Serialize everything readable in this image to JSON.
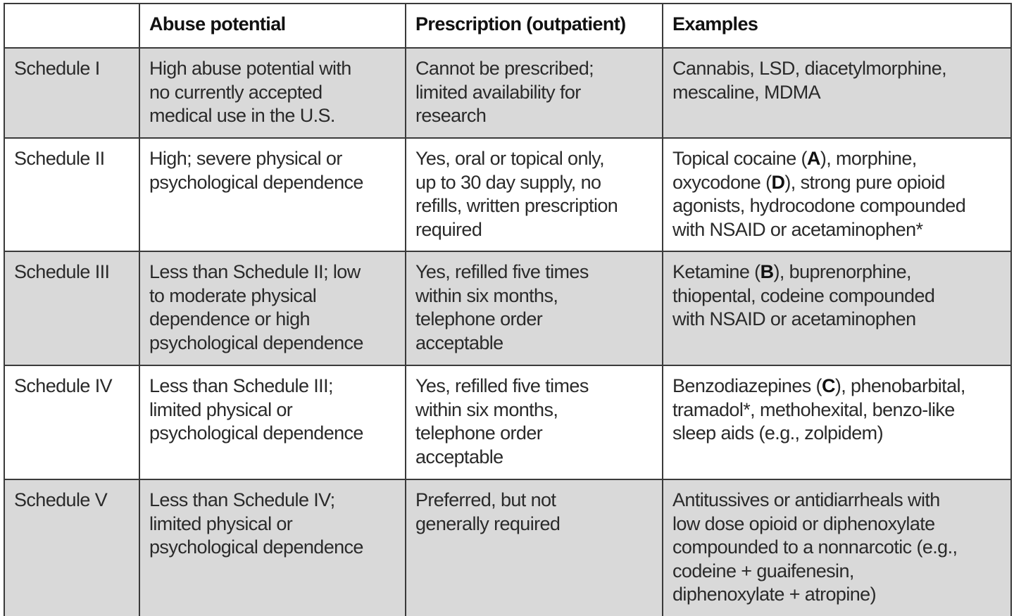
{
  "table": {
    "headers": [
      "",
      "Abuse potential",
      "Prescription (outpatient)",
      "Examples"
    ],
    "colors": {
      "shaded_row": "#d9d9d9",
      "plain_row": "#ffffff",
      "border": "#3a3a3a"
    },
    "rows": [
      {
        "schedule": "Schedule I",
        "abuse_potential": [
          "High abuse potential with",
          "no currently accepted",
          "medical use in the U.S."
        ],
        "prescription": [
          "Cannot be prescribed;",
          "limited availability for",
          "research"
        ],
        "examples": [
          {
            "parts": [
              {
                "text": "Cannabis, LSD, diacetylmorphine,"
              }
            ]
          },
          {
            "parts": [
              {
                "text": "mescaline, MDMA"
              }
            ]
          }
        ],
        "shaded": true
      },
      {
        "schedule": "Schedule II",
        "abuse_potential": [
          "High; severe physical or",
          "psychological dependence"
        ],
        "prescription": [
          "Yes, oral or topical only,",
          "up to 30 day supply, no",
          "refills, written prescription",
          "required"
        ],
        "examples": [
          {
            "parts": [
              {
                "text": "Topical cocaine ("
              },
              {
                "text": "A",
                "bold": true
              },
              {
                "text": "), morphine,"
              }
            ]
          },
          {
            "parts": [
              {
                "text": "oxycodone ("
              },
              {
                "text": "D",
                "bold": true
              },
              {
                "text": "), strong pure opioid"
              }
            ]
          },
          {
            "parts": [
              {
                "text": "agonists, hydrocodone compounded"
              }
            ]
          },
          {
            "parts": [
              {
                "text": "with NSAID or acetaminophen*"
              }
            ]
          }
        ],
        "shaded": false
      },
      {
        "schedule": "Schedule III",
        "abuse_potential": [
          "Less than Schedule II; low",
          "to moderate physical",
          "dependence or high",
          "psychological dependence"
        ],
        "prescription": [
          "Yes, refilled five times",
          "within six months,",
          "telephone order",
          "acceptable"
        ],
        "examples": [
          {
            "parts": [
              {
                "text": "Ketamine ("
              },
              {
                "text": "B",
                "bold": true
              },
              {
                "text": "), buprenorphine,"
              }
            ]
          },
          {
            "parts": [
              {
                "text": "thiopental, codeine compounded"
              }
            ]
          },
          {
            "parts": [
              {
                "text": "with NSAID or acetaminophen"
              }
            ]
          }
        ],
        "shaded": true
      },
      {
        "schedule": "Schedule IV",
        "abuse_potential": [
          "Less than Schedule III;",
          "limited physical or",
          "psychological dependence"
        ],
        "prescription": [
          "Yes, refilled five times",
          "within six months,",
          "telephone order",
          "acceptable"
        ],
        "examples": [
          {
            "parts": [
              {
                "text": "Benzodiazepines ("
              },
              {
                "text": "C",
                "bold": true
              },
              {
                "text": "), phenobarbital,"
              }
            ]
          },
          {
            "parts": [
              {
                "text": "tramadol*, methohexital, benzo-like"
              }
            ]
          },
          {
            "parts": [
              {
                "text": "sleep aids (e.g., zolpidem)"
              }
            ]
          }
        ],
        "shaded": false
      },
      {
        "schedule": "Schedule V",
        "abuse_potential": [
          "Less than Schedule IV;",
          "limited physical or",
          "psychological dependence"
        ],
        "prescription": [
          "Preferred, but not",
          "generally required"
        ],
        "examples": [
          {
            "parts": [
              {
                "text": "Antitussives or antidiarrheals with"
              }
            ]
          },
          {
            "parts": [
              {
                "text": "low dose opioid or diphenoxylate"
              }
            ]
          },
          {
            "parts": [
              {
                "text": "compounded to a nonnarcotic (e.g.,"
              }
            ]
          },
          {
            "parts": [
              {
                "text": "codeine + guaifenesin,"
              }
            ]
          },
          {
            "parts": [
              {
                "text": "diphenoxylate + atropine)"
              }
            ]
          }
        ],
        "shaded": true
      }
    ]
  }
}
